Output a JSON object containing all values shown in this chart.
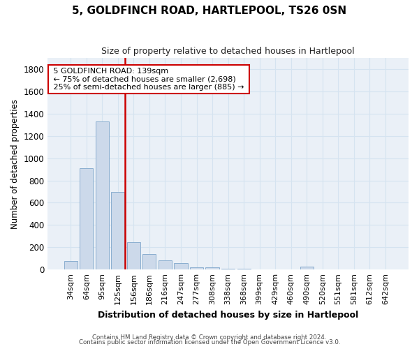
{
  "title": "5, GOLDFINCH ROAD, HARTLEPOOL, TS26 0SN",
  "subtitle": "Size of property relative to detached houses in Hartlepool",
  "xlabel": "Distribution of detached houses by size in Hartlepool",
  "ylabel": "Number of detached properties",
  "categories": [
    "34sqm",
    "64sqm",
    "95sqm",
    "125sqm",
    "156sqm",
    "186sqm",
    "216sqm",
    "247sqm",
    "277sqm",
    "308sqm",
    "338sqm",
    "368sqm",
    "399sqm",
    "429sqm",
    "460sqm",
    "490sqm",
    "520sqm",
    "551sqm",
    "581sqm",
    "612sqm",
    "642sqm"
  ],
  "values": [
    75,
    910,
    1330,
    700,
    245,
    140,
    80,
    55,
    22,
    20,
    10,
    5,
    0,
    0,
    0,
    25,
    0,
    0,
    0,
    0,
    0
  ],
  "bar_color": "#ccd9ea",
  "bar_edge_color": "#8aaed0",
  "vline_color": "#cc0000",
  "annotation_text1": "5 GOLDFINCH ROAD: 139sqm",
  "annotation_text2": "← 75% of detached houses are smaller (2,698)",
  "annotation_text3": "25% of semi-detached houses are larger (885) →",
  "annotation_box_color": "#ffffff",
  "annotation_edge_color": "#cc0000",
  "ylim": [
    0,
    1900
  ],
  "yticks": [
    0,
    200,
    400,
    600,
    800,
    1000,
    1200,
    1400,
    1600,
    1800
  ],
  "grid_color": "#d5e3f0",
  "bg_color": "#eaf0f7",
  "footer1": "Contains HM Land Registry data © Crown copyright and database right 2024.",
  "footer2": "Contains public sector information licensed under the Open Government Licence v3.0."
}
